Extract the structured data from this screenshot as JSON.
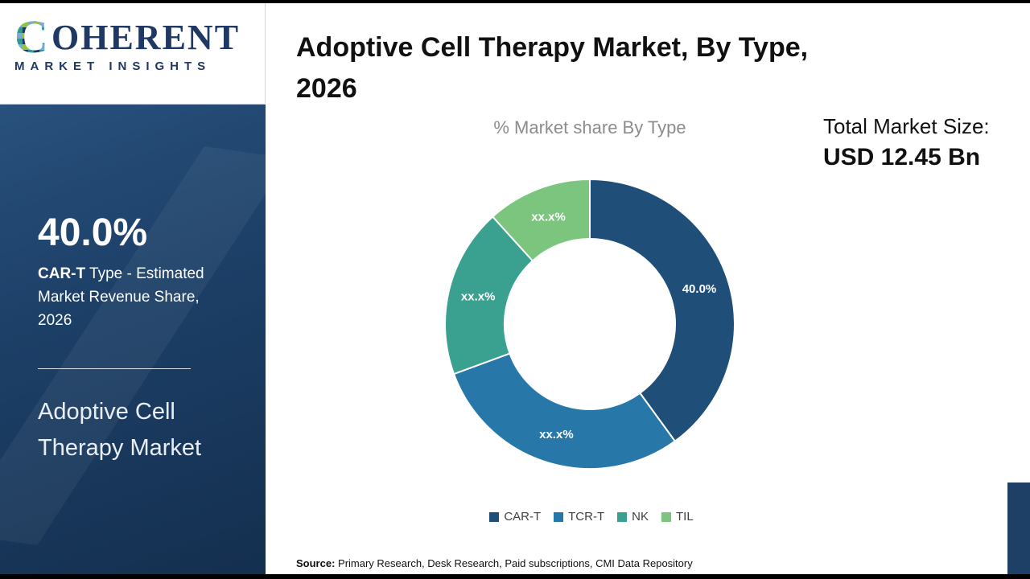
{
  "logo": {
    "initial": "C",
    "rest": "OHERENT",
    "subtitle": "MARKET INSIGHTS"
  },
  "sidebar": {
    "stat_value": "40.0%",
    "stat_label_bold": "CAR-T",
    "stat_label_rest": " Type - Estimated Market Revenue Share, 2026",
    "market_name": "Adoptive Cell Therapy Market"
  },
  "header": {
    "title": "Adoptive Cell Therapy Market, By Type,\n2026",
    "total_label": "Total Market Size:",
    "total_value": "USD 12.45 Bn"
  },
  "chart_data": {
    "type": "pie",
    "donut": true,
    "title": "% Market share By Type",
    "categories": [
      "CAR-T",
      "TCR-T",
      "NK",
      "TIL"
    ],
    "values": [
      40.0,
      29.4,
      18.9,
      11.7
    ],
    "display_labels": [
      "40.0%",
      "xx.x%",
      "xx.x%",
      "xx.x%"
    ],
    "colors": [
      "#1f4e79",
      "#2778a9",
      "#3aa191",
      "#7cc57e"
    ],
    "legend_position": "bottom",
    "note": "Only CAR-T share (40.0%) is labeled numerically; other slices show xx.x% placeholders, values estimated from arc angles"
  },
  "source": {
    "label": "Source:",
    "text": " Primary Research, Desk Research, Paid subscriptions, CMI Data Repository"
  }
}
